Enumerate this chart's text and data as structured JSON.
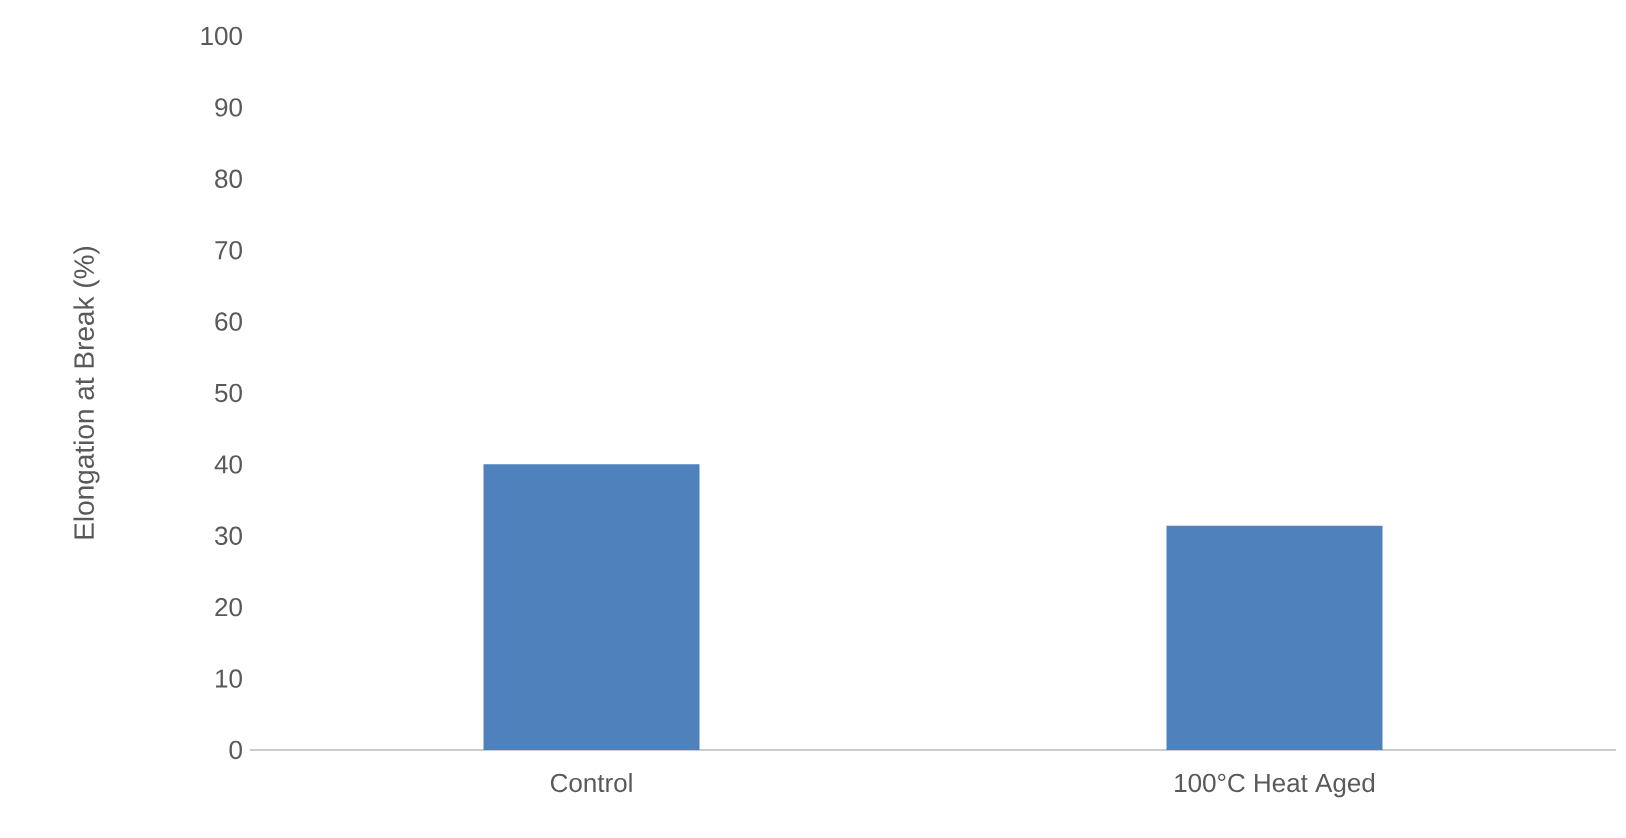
{
  "chart_data": {
    "type": "bar",
    "ylabel": "Elongation at Break (%)",
    "categories": [
      "Control",
      "100°C  Heat Aged"
    ],
    "values": [
      40,
      31.4
    ],
    "color": "#4f81bd",
    "ylim": [
      0,
      100
    ],
    "yticks": [
      0,
      10,
      20,
      30,
      40,
      50,
      60,
      70,
      80,
      90,
      100
    ]
  }
}
